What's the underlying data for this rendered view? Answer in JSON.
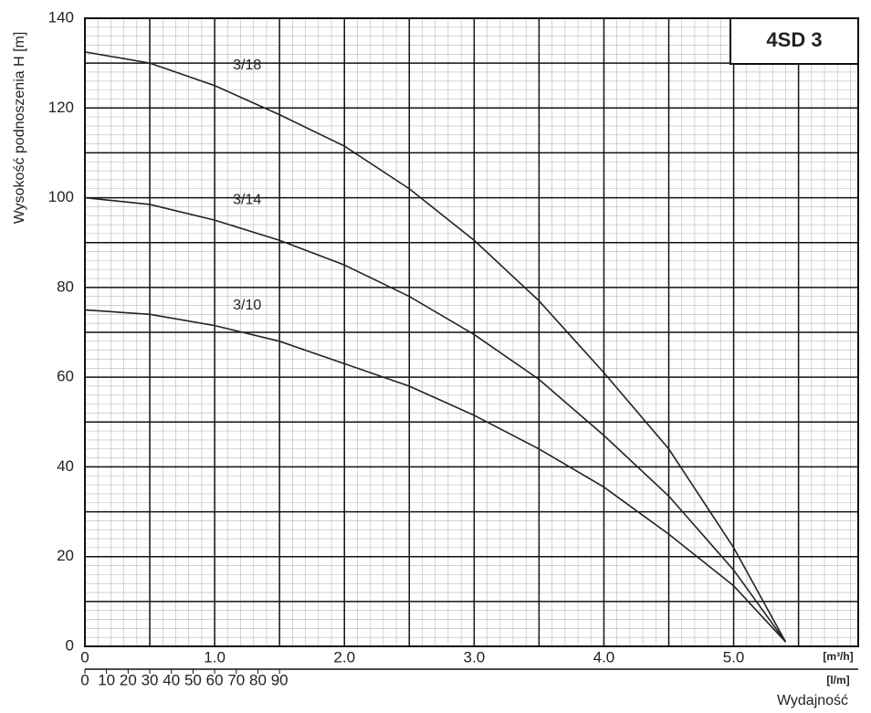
{
  "chart_data": {
    "type": "line",
    "title": "4SD 3",
    "y_label": "Wysokość podnoszenia H [m]",
    "x_label": "Wydajność",
    "x_unit": "[m³/h]",
    "x2_unit": "[l/m]",
    "x": [
      0,
      0.5,
      1.0,
      1.5,
      2.0,
      2.5,
      3.0,
      3.5,
      4.0,
      4.5,
      5.0,
      5.4
    ],
    "series": [
      {
        "name": "3/18",
        "color": "#222222",
        "label_color": "#d9322b",
        "values": [
          132.5,
          130,
          125,
          118.5,
          111.5,
          102,
          90.5,
          77,
          61,
          44,
          22,
          1
        ]
      },
      {
        "name": "3/14",
        "color": "#222222",
        "label_color": "#d9322b",
        "values": [
          100,
          98.5,
          95,
          90.5,
          85,
          78,
          69.5,
          59.5,
          47,
          33.5,
          17,
          1
        ]
      },
      {
        "name": "3/10",
        "color": "#222222",
        "label_color": "#d9322b",
        "values": [
          75,
          74,
          71.5,
          68,
          63,
          58,
          51.5,
          44,
          35.5,
          25,
          13.5,
          1
        ]
      }
    ],
    "xlim": [
      0,
      5.96
    ],
    "xticks": [
      0,
      {
        "value": 1,
        "label": "1.0"
      },
      {
        "value": 2,
        "label": "2.0"
      },
      {
        "value": 3,
        "label": "3.0"
      },
      {
        "value": 4,
        "label": "4.0"
      },
      {
        "value": 5,
        "label": "5.0"
      }
    ],
    "x2lim": [
      0,
      357.6
    ],
    "x2ticks": [
      0,
      10,
      20,
      30,
      40,
      50,
      60,
      70,
      80,
      90
    ],
    "ylim": [
      0,
      140
    ],
    "yticks": [
      0,
      20,
      40,
      60,
      80,
      100,
      120,
      140
    ],
    "grid": {
      "major_x": 0.5,
      "major_y": 10,
      "minor_x": 0.1,
      "minor_y": 2
    }
  }
}
